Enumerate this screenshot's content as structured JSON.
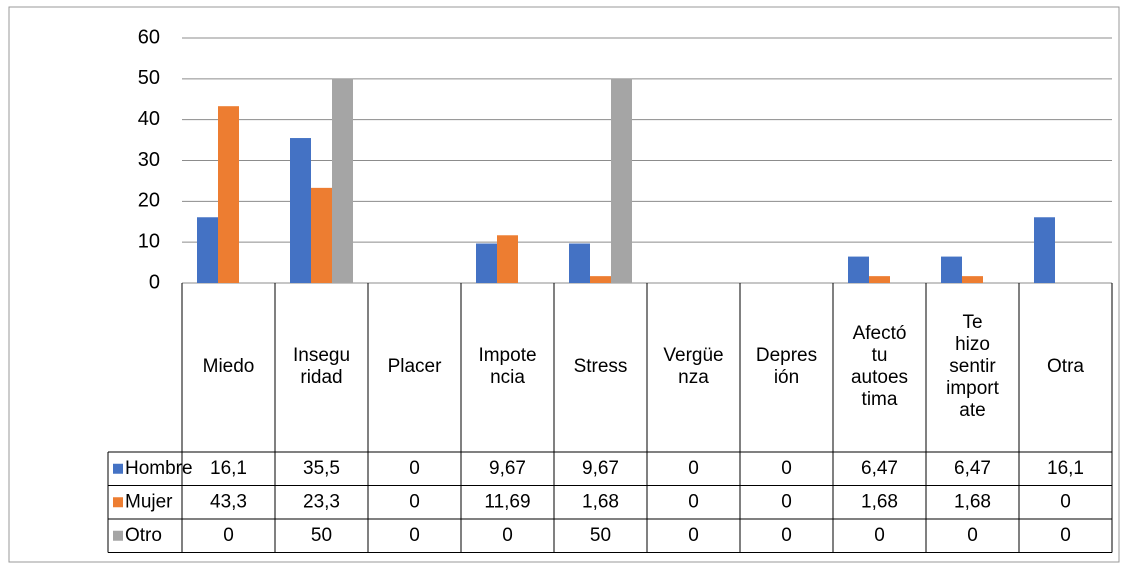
{
  "chart_data": {
    "type": "bar",
    "categories": [
      "Miedo",
      "Insegu\nridad",
      "Placer",
      "Impote\nncia",
      "Stress",
      "Vergüe\nnza",
      "Depres\nión",
      "Afectó\ntu\nautoes\ntima",
      "Te\nhizo\nsentir\nimport\nate",
      "Otra"
    ],
    "series": [
      {
        "name": "Hombre",
        "color": "#4472c4",
        "values": [
          16.1,
          35.5,
          0,
          9.67,
          9.67,
          0,
          0,
          6.47,
          6.47,
          16.1
        ],
        "value_labels": [
          "16,1",
          "35,5",
          "0",
          "9,67",
          "9,67",
          "0",
          "0",
          "6,47",
          "6,47",
          "16,1"
        ]
      },
      {
        "name": "Mujer",
        "color": "#ed7d31",
        "values": [
          43.3,
          23.3,
          0,
          11.69,
          1.68,
          0,
          0,
          1.68,
          1.68,
          0
        ],
        "value_labels": [
          "43,3",
          "23,3",
          "0",
          "11,69",
          "1,68",
          "0",
          "0",
          "1,68",
          "1,68",
          "0"
        ]
      },
      {
        "name": "Otro",
        "color": "#a5a5a5",
        "values": [
          0,
          50,
          0,
          0,
          50,
          0,
          0,
          0,
          0,
          0
        ],
        "value_labels": [
          "0",
          "50",
          "0",
          "0",
          "50",
          "0",
          "0",
          "0",
          "0",
          "0"
        ]
      }
    ],
    "ylim": [
      0,
      60
    ],
    "yticks": [
      0,
      10,
      20,
      30,
      40,
      50,
      60
    ],
    "grid": true,
    "legend": "data-table"
  }
}
